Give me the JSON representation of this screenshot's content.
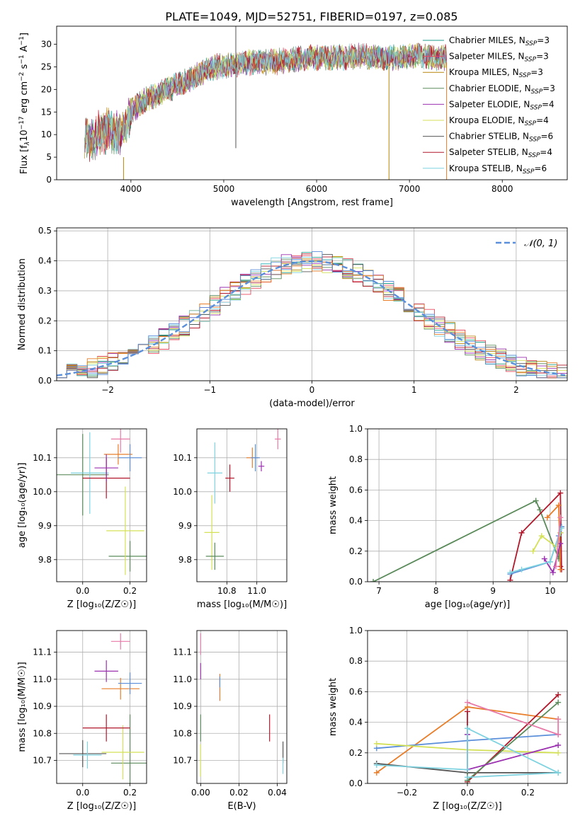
{
  "title": "PLATE=1049, MJD=52751, FIBERID=0197, z=0.085",
  "colors": {
    "chabrier_miles": "#1f9e89",
    "salpeter_miles": "#e84a5f",
    "kroupa_miles": "#b8860b",
    "chabrier_elodie": "#5b8a5b",
    "salpeter_elodie": "#9b30b0",
    "kroupa_elodie": "#d4e157",
    "chabrier_stelib": "#555555",
    "salpeter_stelib": "#b2182b",
    "kroupa_stelib": "#7fd3e0",
    "normal": "#5b8fd9",
    "grid": "#b0b0b0"
  },
  "chart_data": [
    {
      "type": "line",
      "id": "spectrum",
      "xlabel": "wavelength [Angstrom, rest frame]",
      "ylabel_parts": [
        "Flux [f",
        "λ",
        "10",
        "−17",
        " erg cm",
        "−2",
        " s",
        "−1",
        " A",
        "−1",
        "]"
      ],
      "xlim": [
        3200,
        8700
      ],
      "ylim": [
        0,
        34
      ],
      "xticks": [
        4000,
        5000,
        6000,
        7000,
        8000
      ],
      "yticks": [
        0,
        5,
        10,
        15,
        20,
        25,
        30
      ],
      "grid": false,
      "legend": "top-right",
      "series": [
        {
          "name": "Chabrier MILES, N",
          "sub": "SSP",
          "suffix": "=3",
          "color": "#1f9e89"
        },
        {
          "name": "Salpeter MILES, N",
          "sub": "SSP",
          "suffix": "=3",
          "color": "#e84a5f"
        },
        {
          "name": "Kroupa MILES, N",
          "sub": "SSP",
          "suffix": "=3",
          "color": "#b8860b"
        },
        {
          "name": "Chabrier ELODIE, N",
          "sub": "SSP",
          "suffix": "=3",
          "color": "#5b8a5b"
        },
        {
          "name": "Salpeter ELODIE, N",
          "sub": "SSP",
          "suffix": "=4",
          "color": "#9b30b0"
        },
        {
          "name": "Kroupa ELODIE, N",
          "sub": "SSP",
          "suffix": "=4",
          "color": "#d4e157"
        },
        {
          "name": "Chabrier STELIB, N",
          "sub": "SSP",
          "suffix": "=6",
          "color": "#555555"
        },
        {
          "name": "Salpeter STELIB, N",
          "sub": "SSP",
          "suffix": "=4",
          "color": "#b2182b"
        },
        {
          "name": "Kroupa STELIB, N",
          "sub": "SSP",
          "suffix": "=6",
          "color": "#7fd3e0"
        }
      ],
      "continuum": {
        "x": [
          3500,
          3600,
          3700,
          3800,
          3900,
          3950,
          4000,
          4100,
          4300,
          4500,
          4700,
          4900,
          5100,
          5300,
          5500,
          5700,
          5900,
          6100,
          6300,
          6500,
          6700,
          6900,
          7100,
          7300,
          7400
        ],
        "y": [
          10,
          9,
          11,
          11,
          10,
          12,
          15,
          17,
          19,
          21,
          23,
          25,
          25.5,
          26,
          26,
          26.5,
          27,
          27,
          27,
          27.5,
          27,
          27,
          27.5,
          27,
          27
        ]
      },
      "spikes": [
        {
          "x": 5130,
          "y0": 7,
          "y1": 34,
          "color": "#555555"
        },
        {
          "x": 3920,
          "y0": 0,
          "y1": 5,
          "color": "#b8860b"
        },
        {
          "x": 6780,
          "y0": 0,
          "y1": 25,
          "color": "#b8860b"
        },
        {
          "x": 7400,
          "y0": 0,
          "y1": 26,
          "color": "#e87e2a"
        }
      ]
    },
    {
      "type": "bar",
      "id": "residuals",
      "xlabel": "(data-model)/error",
      "ylabel": "Normed distribution",
      "xlim": [
        -2.5,
        2.5
      ],
      "ylim": [
        0,
        0.51
      ],
      "xticks": [
        -2,
        -1,
        0,
        1,
        2
      ],
      "yticks": [
        0.0,
        0.1,
        0.2,
        0.3,
        0.4,
        0.5
      ],
      "grid": true,
      "legend": "top-right",
      "legend_label": "𝒩(0, 1)",
      "bin_width": 0.1
    },
    {
      "type": "scatter",
      "id": "age_vs_Z",
      "xlabel": "Z [log₁₀(Z/Z☉)]",
      "ylabel": "age  [log₁₀(age/yr)]",
      "xlim": [
        -0.11,
        0.27
      ],
      "ylim": [
        9.735,
        10.185
      ],
      "xticks": [
        0.0,
        0.2
      ],
      "yticks": [
        9.8,
        9.9,
        10.0,
        10.1
      ],
      "grid": true,
      "points": [
        {
          "x": 0.0,
          "y": 10.05,
          "ex": 0.11,
          "ey": 0.12,
          "color": "#5b8a5b"
        },
        {
          "x": 0.03,
          "y": 10.055,
          "ex": 0.08,
          "ey": 0.12,
          "color": "#7fd3e0"
        },
        {
          "x": 0.2,
          "y": 9.81,
          "ex": 0.09,
          "ey": 0.045,
          "color": "#5b8a5b"
        },
        {
          "x": 0.18,
          "y": 9.885,
          "ex": 0.08,
          "ey": 0.13,
          "color": "#d4e157"
        },
        {
          "x": 0.1,
          "y": 10.04,
          "ex": 0.1,
          "ey": 0.06,
          "color": "#b2182b"
        },
        {
          "x": 0.16,
          "y": 10.155,
          "ex": 0.04,
          "ey": 0.04,
          "color": "#e87aa8"
        },
        {
          "x": 0.15,
          "y": 10.11,
          "ex": 0.06,
          "ey": 0.03,
          "color": "#e87e2a"
        },
        {
          "x": 0.2,
          "y": 10.1,
          "ex": 0.05,
          "ey": 0.04,
          "color": "#5b8fd9"
        },
        {
          "x": 0.1,
          "y": 10.07,
          "ex": 0.05,
          "ey": 0.04,
          "color": "#9b30b0"
        }
      ]
    },
    {
      "type": "scatter",
      "id": "age_vs_mass",
      "xlabel": "mass [log₁₀(M/M☉)]",
      "xlim": [
        10.6,
        11.2
      ],
      "ylim": [
        9.735,
        10.185
      ],
      "xticks": [
        10.8,
        11.0
      ],
      "xtick_labels": [
        "10.8",
        "11.0"
      ],
      "yticks": [
        9.8,
        9.9,
        10.0,
        10.1
      ],
      "grid": true,
      "points": [
        {
          "x": 10.72,
          "y": 10.055,
          "ex": 0.05,
          "ey": 0.09,
          "color": "#7fd3e0"
        },
        {
          "x": 10.7,
          "y": 9.88,
          "ex": 0.05,
          "ey": 0.11,
          "color": "#d4e157"
        },
        {
          "x": 10.72,
          "y": 9.81,
          "ex": 0.06,
          "ey": 0.04,
          "color": "#5b8a5b"
        },
        {
          "x": 10.82,
          "y": 10.04,
          "ex": 0.03,
          "ey": 0.04,
          "color": "#b2182b"
        },
        {
          "x": 10.97,
          "y": 10.1,
          "ex": 0.04,
          "ey": 0.03,
          "color": "#e87e2a"
        },
        {
          "x": 10.99,
          "y": 10.1,
          "ex": 0.03,
          "ey": 0.04,
          "color": "#5b8fd9"
        },
        {
          "x": 11.03,
          "y": 10.075,
          "ex": 0.02,
          "ey": 0.015,
          "color": "#9b30b0"
        },
        {
          "x": 11.14,
          "y": 10.155,
          "ex": 0.02,
          "ey": 0.03,
          "color": "#e87aa8"
        }
      ]
    },
    {
      "type": "line",
      "id": "weight_vs_age",
      "xlabel": "age  [log₁₀(age/yr)]",
      "ylabel": "mass weight",
      "xlim": [
        6.8,
        10.3
      ],
      "ylim": [
        0,
        1.0
      ],
      "xticks": [
        7,
        8,
        9,
        10
      ],
      "yticks": [
        0.0,
        0.2,
        0.4,
        0.6,
        0.8,
        1.0
      ],
      "grid": true,
      "series": [
        {
          "color": "#5b8a5b",
          "x": [
            6.9,
            9.75,
            9.82,
            10.15,
            10.18
          ],
          "y": [
            0.0,
            0.53,
            0.47,
            0.15,
            0.32
          ]
        },
        {
          "color": "#b2182b",
          "x": [
            9.3,
            9.5,
            10.18,
            10.2,
            10.18
          ],
          "y": [
            0.01,
            0.32,
            0.58,
            0.08,
            0.1
          ]
        },
        {
          "color": "#e87e2a",
          "x": [
            9.95,
            10.15,
            10.18
          ],
          "y": [
            0.42,
            0.5,
            0.08
          ]
        },
        {
          "color": "#5b8fd9",
          "x": [
            9.3,
            10.0,
            10.15,
            10.2
          ],
          "y": [
            0.05,
            0.13,
            0.3,
            0.36
          ]
        },
        {
          "color": "#d4e157",
          "x": [
            9.7,
            9.85,
            10.1,
            10.18
          ],
          "y": [
            0.2,
            0.3,
            0.23,
            0.32
          ]
        },
        {
          "color": "#9b30b0",
          "x": [
            9.9,
            10.05,
            10.18
          ],
          "y": [
            0.15,
            0.06,
            0.25
          ]
        },
        {
          "color": "#7fd3e0",
          "x": [
            9.3,
            9.5,
            10.0,
            10.2
          ],
          "y": [
            0.06,
            0.08,
            0.13,
            0.35
          ]
        },
        {
          "color": "#e87aa8",
          "x": [
            10.1,
            10.18
          ],
          "y": [
            0.1,
            0.42
          ]
        }
      ]
    },
    {
      "type": "scatter",
      "id": "mass_vs_Z",
      "xlabel": "Z [log₁₀(Z/Z☉)]",
      "ylabel": "mass [log₁₀(M/M☉)]",
      "xlim": [
        -0.11,
        0.27
      ],
      "ylim": [
        10.615,
        11.18
      ],
      "xticks": [
        0.0,
        0.2
      ],
      "yticks": [
        10.7,
        10.8,
        10.9,
        11.0,
        11.1
      ],
      "grid": true,
      "points": [
        {
          "x": 0.0,
          "y": 10.725,
          "ex": 0.1,
          "ey": 0.05,
          "color": "#555555"
        },
        {
          "x": 0.02,
          "y": 10.72,
          "ex": 0.06,
          "ey": 0.05,
          "color": "#7fd3e0"
        },
        {
          "x": 0.2,
          "y": 10.69,
          "ex": 0.08,
          "ey": 0.18,
          "color": "#5b8a5b"
        },
        {
          "x": 0.17,
          "y": 10.73,
          "ex": 0.09,
          "ey": 0.1,
          "color": "#d4e157"
        },
        {
          "x": 0.1,
          "y": 10.82,
          "ex": 0.1,
          "ey": 0.05,
          "color": "#b2182b"
        },
        {
          "x": 0.16,
          "y": 10.965,
          "ex": 0.08,
          "ey": 0.04,
          "color": "#e87e2a"
        },
        {
          "x": 0.2,
          "y": 10.985,
          "ex": 0.05,
          "ey": 0.04,
          "color": "#5b8fd9"
        },
        {
          "x": 0.1,
          "y": 11.03,
          "ex": 0.05,
          "ey": 0.04,
          "color": "#9b30b0"
        },
        {
          "x": 0.16,
          "y": 11.14,
          "ex": 0.04,
          "ey": 0.03,
          "color": "#e87aa8"
        }
      ]
    },
    {
      "type": "scatter",
      "id": "mass_vs_ebv",
      "xlabel": "E(B-V)",
      "xlim": [
        -0.002,
        0.045
      ],
      "ylim": [
        10.615,
        11.18
      ],
      "xticks": [
        0.0,
        0.02,
        0.04
      ],
      "xtick_labels": [
        "0.00",
        "0.02",
        "0.04"
      ],
      "yticks": [
        10.7,
        10.8,
        10.9,
        11.0,
        11.1
      ],
      "grid": true,
      "points": [
        {
          "x": 0.0,
          "y": 11.13,
          "ex": 0,
          "ey": 0.04,
          "color": "#e87aa8"
        },
        {
          "x": 0.0,
          "y": 11.03,
          "ex": 0,
          "ey": 0.03,
          "color": "#9b30b0"
        },
        {
          "x": 0.0,
          "y": 10.82,
          "ex": 0,
          "ey": 0.05,
          "color": "#5b8a5b"
        },
        {
          "x": 0.0,
          "y": 10.7,
          "ex": 0,
          "ey": 0.06,
          "color": "#d4e157"
        },
        {
          "x": 0.01,
          "y": 10.97,
          "ex": 0,
          "ey": 0.05,
          "color": "#e87e2a"
        },
        {
          "x": 0.01,
          "y": 10.99,
          "ex": 0,
          "ey": 0.02,
          "color": "#5b8fd9"
        },
        {
          "x": 0.036,
          "y": 10.82,
          "ex": 0,
          "ey": 0.05,
          "color": "#b2182b"
        },
        {
          "x": 0.043,
          "y": 10.73,
          "ex": 0,
          "ey": 0.04,
          "color": "#555555"
        },
        {
          "x": 0.043,
          "y": 10.68,
          "ex": 0,
          "ey": 0.03,
          "color": "#7fd3e0"
        }
      ]
    },
    {
      "type": "line",
      "id": "weight_vs_Z",
      "xlabel": "Z [log₁₀(Z/Z☉)]",
      "ylabel": "mass weight",
      "xlim": [
        -0.33,
        0.33
      ],
      "ylim": [
        0,
        1.0
      ],
      "xticks": [
        -0.2,
        0.0,
        0.2
      ],
      "xtick_labels": [
        "−0.2",
        "0.0",
        "0.2"
      ],
      "yticks": [
        0.0,
        0.2,
        0.4,
        0.6,
        0.8,
        1.0
      ],
      "grid": true,
      "series": [
        {
          "color": "#e87e2a",
          "x": [
            -0.3,
            0.0,
            0.3
          ],
          "y": [
            0.07,
            0.5,
            0.42
          ]
        },
        {
          "color": "#5b8fd9",
          "x": [
            -0.3,
            0.0,
            0.3
          ],
          "y": [
            0.23,
            0.28,
            0.32
          ]
        },
        {
          "color": "#d4e157",
          "x": [
            -0.3,
            0.0,
            0.3
          ],
          "y": [
            0.26,
            0.22,
            0.2
          ]
        },
        {
          "color": "#555555",
          "x": [
            -0.3,
            0.0,
            0.3
          ],
          "y": [
            0.13,
            0.07,
            0.07
          ]
        },
        {
          "color": "#b2182b",
          "x": [
            0.0,
            0.0,
            0.3
          ],
          "y": [
            0.47,
            0.01,
            0.58
          ]
        },
        {
          "color": "#5b8a5b",
          "x": [
            0.0,
            0.0,
            0.3
          ],
          "y": [
            0.36,
            0.02,
            0.53
          ]
        },
        {
          "color": "#9b30b0",
          "x": [
            0.0,
            0.0,
            0.3
          ],
          "y": [
            0.32,
            0.09,
            0.25
          ]
        },
        {
          "color": "#e87aa8",
          "x": [
            0.0,
            0.3,
            0.3
          ],
          "y": [
            0.53,
            0.32,
            0.42
          ]
        },
        {
          "color": "#7fd3e0",
          "x": [
            -0.3,
            0.0,
            0.0,
            0.3
          ],
          "y": [
            0.12,
            0.09,
            0.36,
            0.07
          ]
        },
        {
          "color": "#7fd3e0",
          "x": [
            0.0,
            0.3
          ],
          "y": [
            0.04,
            0.07
          ]
        }
      ]
    }
  ]
}
